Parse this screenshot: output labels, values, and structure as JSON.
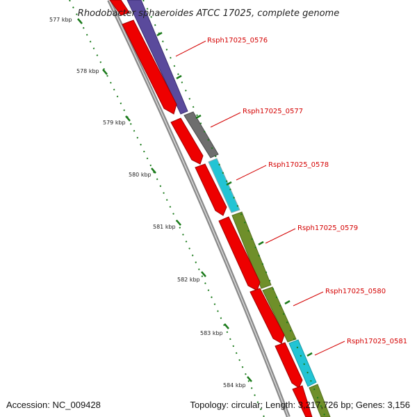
{
  "title": "Rhodobacter sphaeroides ATCC 17025, complete genome",
  "footer": {
    "accession": "Accession: NC_009428",
    "summary": "Topology: circular; Length: 3,217,726 bp; Genes: 3,156"
  },
  "ticks": [
    "577 kbp",
    "578 kbp",
    "579 kbp",
    "580 kbp",
    "581 kbp",
    "582 kbp",
    "583 kbp",
    "584 kbp"
  ],
  "gene_labels": [
    "Rsph17025_0576",
    "Rsph17025_0577",
    "Rsph17025_0578",
    "Rsph17025_0579",
    "Rsph17025_0580",
    "Rsph17025_0581"
  ],
  "colors": {
    "backbone": "#8a8a8a",
    "cds": "#ee0000",
    "gene_0576": "#5a4a9c",
    "gene_0577": "#6e6e6e",
    "gene_0578": "#22c4d4",
    "gene_0579": "#6f8f2a",
    "gene_0580": "#6f8f2a",
    "gene_0581": "#22c4d4",
    "ticks": "#1a7a1a",
    "label": "#d40000"
  }
}
